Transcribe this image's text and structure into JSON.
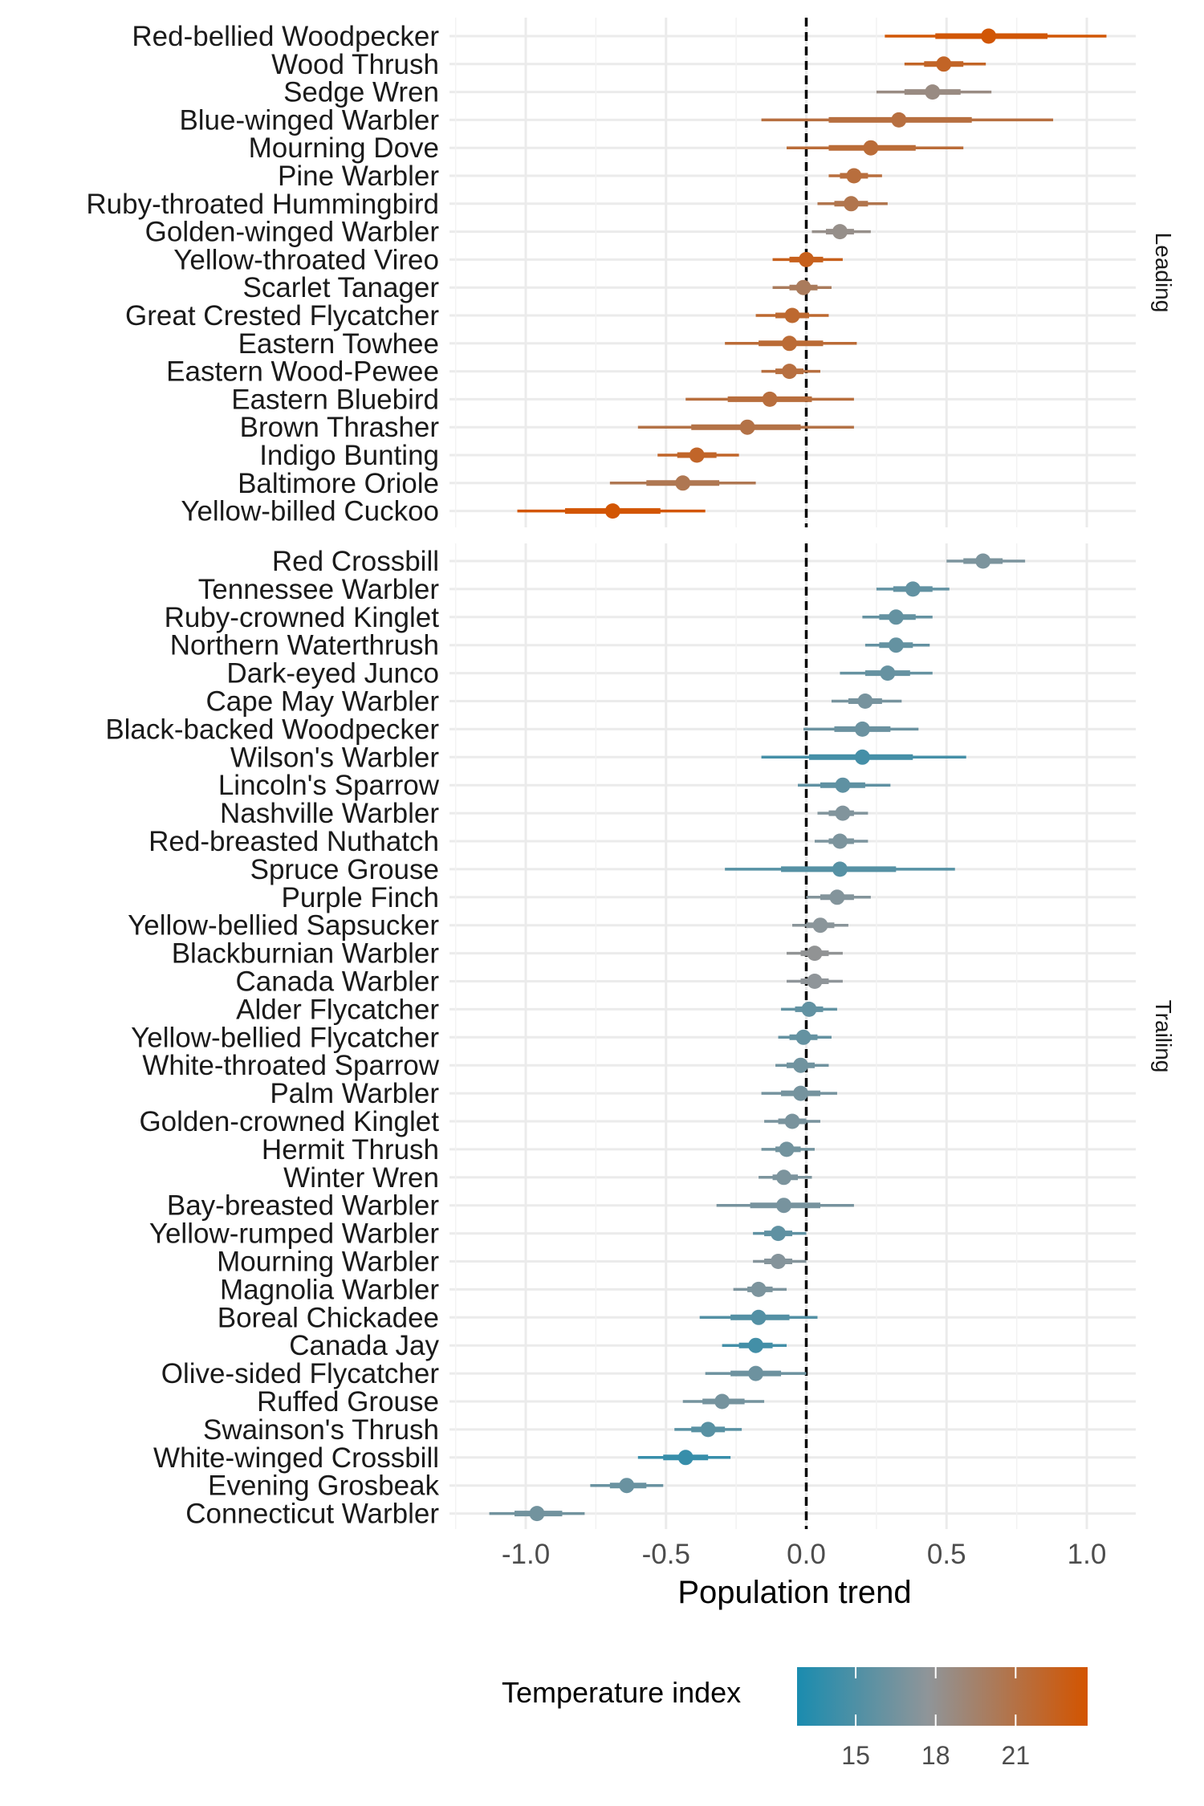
{
  "chart_data": {
    "type": "forest",
    "xlabel": "Population trend",
    "xlim": [
      -1.25,
      1.17
    ],
    "xticks": [
      -1.0,
      -0.5,
      0.0,
      0.5,
      1.0
    ],
    "xtick_labels": [
      "-1.0",
      "-0.5",
      "0.0",
      "0.5",
      "1.0"
    ],
    "grid": true,
    "reference_line": 0.0,
    "legend": {
      "title": "Temperature index",
      "position": "bottom",
      "colors": [
        "#1a8caf",
        "#8f9599",
        "#d35400"
      ],
      "ticks": [
        15,
        18,
        21
      ],
      "range": [
        12.8,
        23.7
      ]
    },
    "facets": [
      {
        "label": "Leading",
        "species": [
          {
            "name": "Red-bellied Woodpecker",
            "mean": 0.65,
            "lo95": 0.28,
            "hi95": 1.07,
            "lo50": 0.46,
            "hi50": 0.86,
            "temp": 23.5
          },
          {
            "name": "Wood Thrush",
            "mean": 0.49,
            "lo95": 0.35,
            "hi95": 0.64,
            "lo50": 0.42,
            "hi50": 0.56,
            "temp": 22.2
          },
          {
            "name": "Sedge Wren",
            "mean": 0.45,
            "lo95": 0.25,
            "hi95": 0.66,
            "lo50": 0.35,
            "hi50": 0.55,
            "temp": 18.6
          },
          {
            "name": "Blue-winged Warbler",
            "mean": 0.33,
            "lo95": -0.16,
            "hi95": 0.88,
            "lo50": 0.08,
            "hi50": 0.59,
            "temp": 21.2
          },
          {
            "name": "Mourning Dove",
            "mean": 0.23,
            "lo95": -0.07,
            "hi95": 0.56,
            "lo50": 0.08,
            "hi50": 0.39,
            "temp": 21.5
          },
          {
            "name": "Pine Warbler",
            "mean": 0.17,
            "lo95": 0.08,
            "hi95": 0.27,
            "lo50": 0.12,
            "hi50": 0.22,
            "temp": 21.3
          },
          {
            "name": "Ruby-throated Hummingbird",
            "mean": 0.16,
            "lo95": 0.04,
            "hi95": 0.29,
            "lo50": 0.1,
            "hi50": 0.22,
            "temp": 20.7
          },
          {
            "name": "Golden-winged Warbler",
            "mean": 0.12,
            "lo95": 0.02,
            "hi95": 0.23,
            "lo50": 0.07,
            "hi50": 0.17,
            "temp": 18.3
          },
          {
            "name": "Yellow-throated Vireo",
            "mean": 0.0,
            "lo95": -0.12,
            "hi95": 0.13,
            "lo50": -0.06,
            "hi50": 0.06,
            "temp": 22.6
          },
          {
            "name": "Scarlet Tanager",
            "mean": -0.01,
            "lo95": -0.12,
            "hi95": 0.09,
            "lo50": -0.06,
            "hi50": 0.04,
            "temp": 20.1
          },
          {
            "name": "Great Crested Flycatcher",
            "mean": -0.05,
            "lo95": -0.18,
            "hi95": 0.08,
            "lo50": -0.11,
            "hi50": 0.01,
            "temp": 21.8
          },
          {
            "name": "Eastern Towhee",
            "mean": -0.06,
            "lo95": -0.29,
            "hi95": 0.18,
            "lo50": -0.17,
            "hi50": 0.06,
            "temp": 21.6
          },
          {
            "name": "Eastern Wood-Pewee",
            "mean": -0.06,
            "lo95": -0.16,
            "hi95": 0.05,
            "lo50": -0.11,
            "hi50": -0.01,
            "temp": 21.2
          },
          {
            "name": "Eastern Bluebird",
            "mean": -0.13,
            "lo95": -0.43,
            "hi95": 0.17,
            "lo50": -0.28,
            "hi50": 0.02,
            "temp": 21.3
          },
          {
            "name": "Brown Thrasher",
            "mean": -0.21,
            "lo95": -0.6,
            "hi95": 0.17,
            "lo50": -0.41,
            "hi50": -0.02,
            "temp": 20.9
          },
          {
            "name": "Indigo Bunting",
            "mean": -0.39,
            "lo95": -0.53,
            "hi95": -0.24,
            "lo50": -0.46,
            "hi50": -0.32,
            "temp": 22.1
          },
          {
            "name": "Baltimore Oriole",
            "mean": -0.44,
            "lo95": -0.7,
            "hi95": -0.18,
            "lo50": -0.57,
            "hi50": -0.31,
            "temp": 20.5
          },
          {
            "name": "Yellow-billed Cuckoo",
            "mean": -0.69,
            "lo95": -1.03,
            "hi95": -0.36,
            "lo50": -0.86,
            "hi50": -0.52,
            "temp": 23.6
          }
        ]
      },
      {
        "label": "Trailing",
        "species": [
          {
            "name": "Red Crossbill",
            "mean": 0.63,
            "lo95": 0.5,
            "hi95": 0.78,
            "lo50": 0.56,
            "hi50": 0.7,
            "temp": 16.9
          },
          {
            "name": "Tennessee Warbler",
            "mean": 0.38,
            "lo95": 0.25,
            "hi95": 0.51,
            "lo50": 0.31,
            "hi50": 0.45,
            "temp": 15.8
          },
          {
            "name": "Ruby-crowned Kinglet",
            "mean": 0.32,
            "lo95": 0.2,
            "hi95": 0.45,
            "lo50": 0.26,
            "hi50": 0.39,
            "temp": 15.9
          },
          {
            "name": "Northern Waterthrush",
            "mean": 0.32,
            "lo95": 0.21,
            "hi95": 0.44,
            "lo50": 0.26,
            "hi50": 0.38,
            "temp": 15.9
          },
          {
            "name": "Dark-eyed Junco",
            "mean": 0.29,
            "lo95": 0.12,
            "hi95": 0.45,
            "lo50": 0.21,
            "hi50": 0.37,
            "temp": 16.0
          },
          {
            "name": "Cape May Warbler",
            "mean": 0.21,
            "lo95": 0.09,
            "hi95": 0.34,
            "lo50": 0.15,
            "hi50": 0.27,
            "temp": 16.7
          },
          {
            "name": "Black-backed Woodpecker",
            "mean": 0.2,
            "lo95": -0.01,
            "hi95": 0.4,
            "lo50": 0.1,
            "hi50": 0.3,
            "temp": 16.2
          },
          {
            "name": "Wilson's Warbler",
            "mean": 0.2,
            "lo95": -0.16,
            "hi95": 0.57,
            "lo50": 0.01,
            "hi50": 0.38,
            "temp": 14.6
          },
          {
            "name": "Lincoln's Sparrow",
            "mean": 0.13,
            "lo95": -0.03,
            "hi95": 0.3,
            "lo50": 0.05,
            "hi50": 0.21,
            "temp": 15.7
          },
          {
            "name": "Nashville Warbler",
            "mean": 0.13,
            "lo95": 0.04,
            "hi95": 0.22,
            "lo50": 0.08,
            "hi50": 0.17,
            "temp": 17.1
          },
          {
            "name": "Red-breasted Nuthatch",
            "mean": 0.12,
            "lo95": 0.03,
            "hi95": 0.22,
            "lo50": 0.08,
            "hi50": 0.17,
            "temp": 16.9
          },
          {
            "name": "Spruce Grouse",
            "mean": 0.12,
            "lo95": -0.29,
            "hi95": 0.53,
            "lo50": -0.09,
            "hi50": 0.32,
            "temp": 15.3
          },
          {
            "name": "Purple Finch",
            "mean": 0.11,
            "lo95": 0.0,
            "hi95": 0.23,
            "lo50": 0.05,
            "hi50": 0.17,
            "temp": 17.2
          },
          {
            "name": "Yellow-bellied Sapsucker",
            "mean": 0.05,
            "lo95": -0.05,
            "hi95": 0.15,
            "lo50": 0.0,
            "hi50": 0.1,
            "temp": 17.5
          },
          {
            "name": "Blackburnian Warbler",
            "mean": 0.03,
            "lo95": -0.07,
            "hi95": 0.13,
            "lo50": -0.02,
            "hi50": 0.08,
            "temp": 17.9
          },
          {
            "name": "Canada Warbler",
            "mean": 0.03,
            "lo95": -0.07,
            "hi95": 0.13,
            "lo50": -0.02,
            "hi50": 0.08,
            "temp": 17.7
          },
          {
            "name": "Alder Flycatcher",
            "mean": 0.01,
            "lo95": -0.09,
            "hi95": 0.11,
            "lo50": -0.04,
            "hi50": 0.06,
            "temp": 15.8
          },
          {
            "name": "Yellow-bellied Flycatcher",
            "mean": -0.01,
            "lo95": -0.1,
            "hi95": 0.09,
            "lo50": -0.06,
            "hi50": 0.04,
            "temp": 15.9
          },
          {
            "name": "White-throated Sparrow",
            "mean": -0.02,
            "lo95": -0.11,
            "hi95": 0.08,
            "lo50": -0.07,
            "hi50": 0.03,
            "temp": 16.4
          },
          {
            "name": "Palm Warbler",
            "mean": -0.02,
            "lo95": -0.16,
            "hi95": 0.11,
            "lo50": -0.09,
            "hi50": 0.05,
            "temp": 16.6
          },
          {
            "name": "Golden-crowned Kinglet",
            "mean": -0.05,
            "lo95": -0.15,
            "hi95": 0.05,
            "lo50": -0.1,
            "hi50": 0.0,
            "temp": 16.8
          },
          {
            "name": "Hermit Thrush",
            "mean": -0.07,
            "lo95": -0.16,
            "hi95": 0.03,
            "lo50": -0.11,
            "hi50": -0.02,
            "temp": 16.5
          },
          {
            "name": "Winter Wren",
            "mean": -0.08,
            "lo95": -0.17,
            "hi95": 0.02,
            "lo50": -0.12,
            "hi50": -0.03,
            "temp": 16.9
          },
          {
            "name": "Bay-breasted Warbler",
            "mean": -0.08,
            "lo95": -0.32,
            "hi95": 0.17,
            "lo50": -0.2,
            "hi50": 0.05,
            "temp": 16.7
          },
          {
            "name": "Yellow-rumped Warbler",
            "mean": -0.1,
            "lo95": -0.19,
            "hi95": 0.0,
            "lo50": -0.15,
            "hi50": -0.05,
            "temp": 15.7
          },
          {
            "name": "Mourning Warbler",
            "mean": -0.1,
            "lo95": -0.19,
            "hi95": 0.0,
            "lo50": -0.15,
            "hi50": -0.05,
            "temp": 17.3
          },
          {
            "name": "Magnolia Warbler",
            "mean": -0.17,
            "lo95": -0.26,
            "hi95": -0.07,
            "lo50": -0.21,
            "hi50": -0.12,
            "temp": 16.9
          },
          {
            "name": "Boreal Chickadee",
            "mean": -0.17,
            "lo95": -0.38,
            "hi95": 0.04,
            "lo50": -0.27,
            "hi50": -0.06,
            "temp": 15.2
          },
          {
            "name": "Canada Jay",
            "mean": -0.18,
            "lo95": -0.3,
            "hi95": -0.07,
            "lo50": -0.24,
            "hi50": -0.12,
            "temp": 14.5
          },
          {
            "name": "Olive-sided Flycatcher",
            "mean": -0.18,
            "lo95": -0.36,
            "hi95": 0.0,
            "lo50": -0.27,
            "hi50": -0.09,
            "temp": 16.3
          },
          {
            "name": "Ruffed Grouse",
            "mean": -0.3,
            "lo95": -0.44,
            "hi95": -0.15,
            "lo50": -0.37,
            "hi50": -0.22,
            "temp": 16.6
          },
          {
            "name": "Swainson's Thrush",
            "mean": -0.35,
            "lo95": -0.47,
            "hi95": -0.23,
            "lo50": -0.41,
            "hi50": -0.29,
            "temp": 15.4
          },
          {
            "name": "White-winged Crossbill",
            "mean": -0.43,
            "lo95": -0.6,
            "hi95": -0.27,
            "lo50": -0.51,
            "hi50": -0.35,
            "temp": 14.0
          },
          {
            "name": "Evening Grosbeak",
            "mean": -0.64,
            "lo95": -0.77,
            "hi95": -0.51,
            "lo50": -0.7,
            "hi50": -0.57,
            "temp": 16.1
          },
          {
            "name": "Connecticut Warbler",
            "mean": -0.96,
            "lo95": -1.13,
            "hi95": -0.79,
            "lo50": -1.04,
            "hi50": -0.87,
            "temp": 16.5
          }
        ]
      }
    ]
  }
}
